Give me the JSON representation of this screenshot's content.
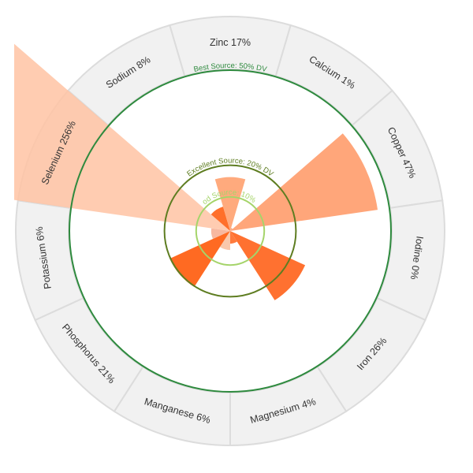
{
  "chart_data": {
    "type": "polar-bar",
    "title": "",
    "categories": [
      "Calcium",
      "Copper",
      "Iodine",
      "Iron",
      "Magnesium",
      "Manganese",
      "Phosphorus",
      "Potassium",
      "Selenium",
      "Sodium",
      "Zinc"
    ],
    "labels": [
      "Calcium 1%",
      "Copper 47%",
      "Iodine 0%",
      "Iron 26%",
      "Magnesium 4%",
      "Manganese 6%",
      "Phosphorus 21%",
      "Potassium 6%",
      "Selenium 256%",
      "Sodium 8%",
      "Zinc 17%"
    ],
    "values": [
      1,
      47,
      0,
      26,
      4,
      6,
      21,
      6,
      256,
      8,
      17
    ],
    "colors": [
      "#f5a988",
      "#ffa67a",
      "#ff8a4c",
      "#ff7130",
      "#ff7a3c",
      "#f9c8ac",
      "#ff6a22",
      "#f7b8a0",
      "#ffc3a3",
      "#ff6f2a",
      "#ffaa7d"
    ],
    "value_max_shown": 50,
    "reference_rings": [
      {
        "label": "Good Source: 10% DV",
        "value": 10,
        "color": "#a5d46a"
      },
      {
        "label": "Excellent Source: 20% DV",
        "value": 20,
        "color": "#5e7d21"
      },
      {
        "label": "Best Source: 50% DV",
        "value": 50,
        "color": "#2e8a3e"
      }
    ],
    "label_band_color": "#f1f1f1",
    "label_band_divider_color": "#dcdcdc"
  }
}
